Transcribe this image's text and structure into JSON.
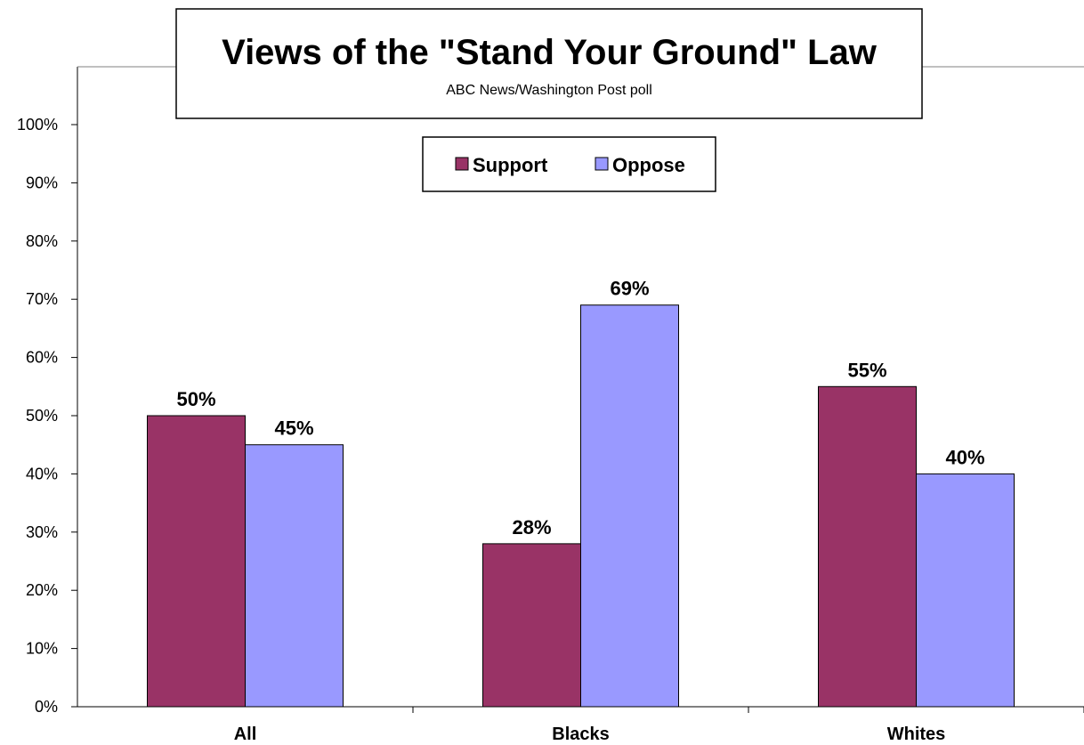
{
  "chart_data": {
    "type": "bar",
    "title": "Views of the \"Stand Your Ground\" Law",
    "subtitle": "ABC News/Washington Post poll",
    "categories": [
      "All",
      "Blacks",
      "Whites"
    ],
    "series": [
      {
        "name": "Support",
        "color": "#993366",
        "values": [
          50,
          28,
          55
        ],
        "labels": [
          "50%",
          "28%",
          "55%"
        ]
      },
      {
        "name": "Oppose",
        "color": "#9999ff",
        "values": [
          45,
          69,
          40
        ],
        "labels": [
          "45%",
          "69%",
          "40%"
        ]
      }
    ],
    "ylim": [
      0,
      100
    ],
    "yticks": [
      "0%",
      "10%",
      "20%",
      "30%",
      "40%",
      "50%",
      "60%",
      "70%",
      "80%",
      "90%",
      "100%"
    ],
    "grid": false,
    "legend_position": "top-center"
  }
}
